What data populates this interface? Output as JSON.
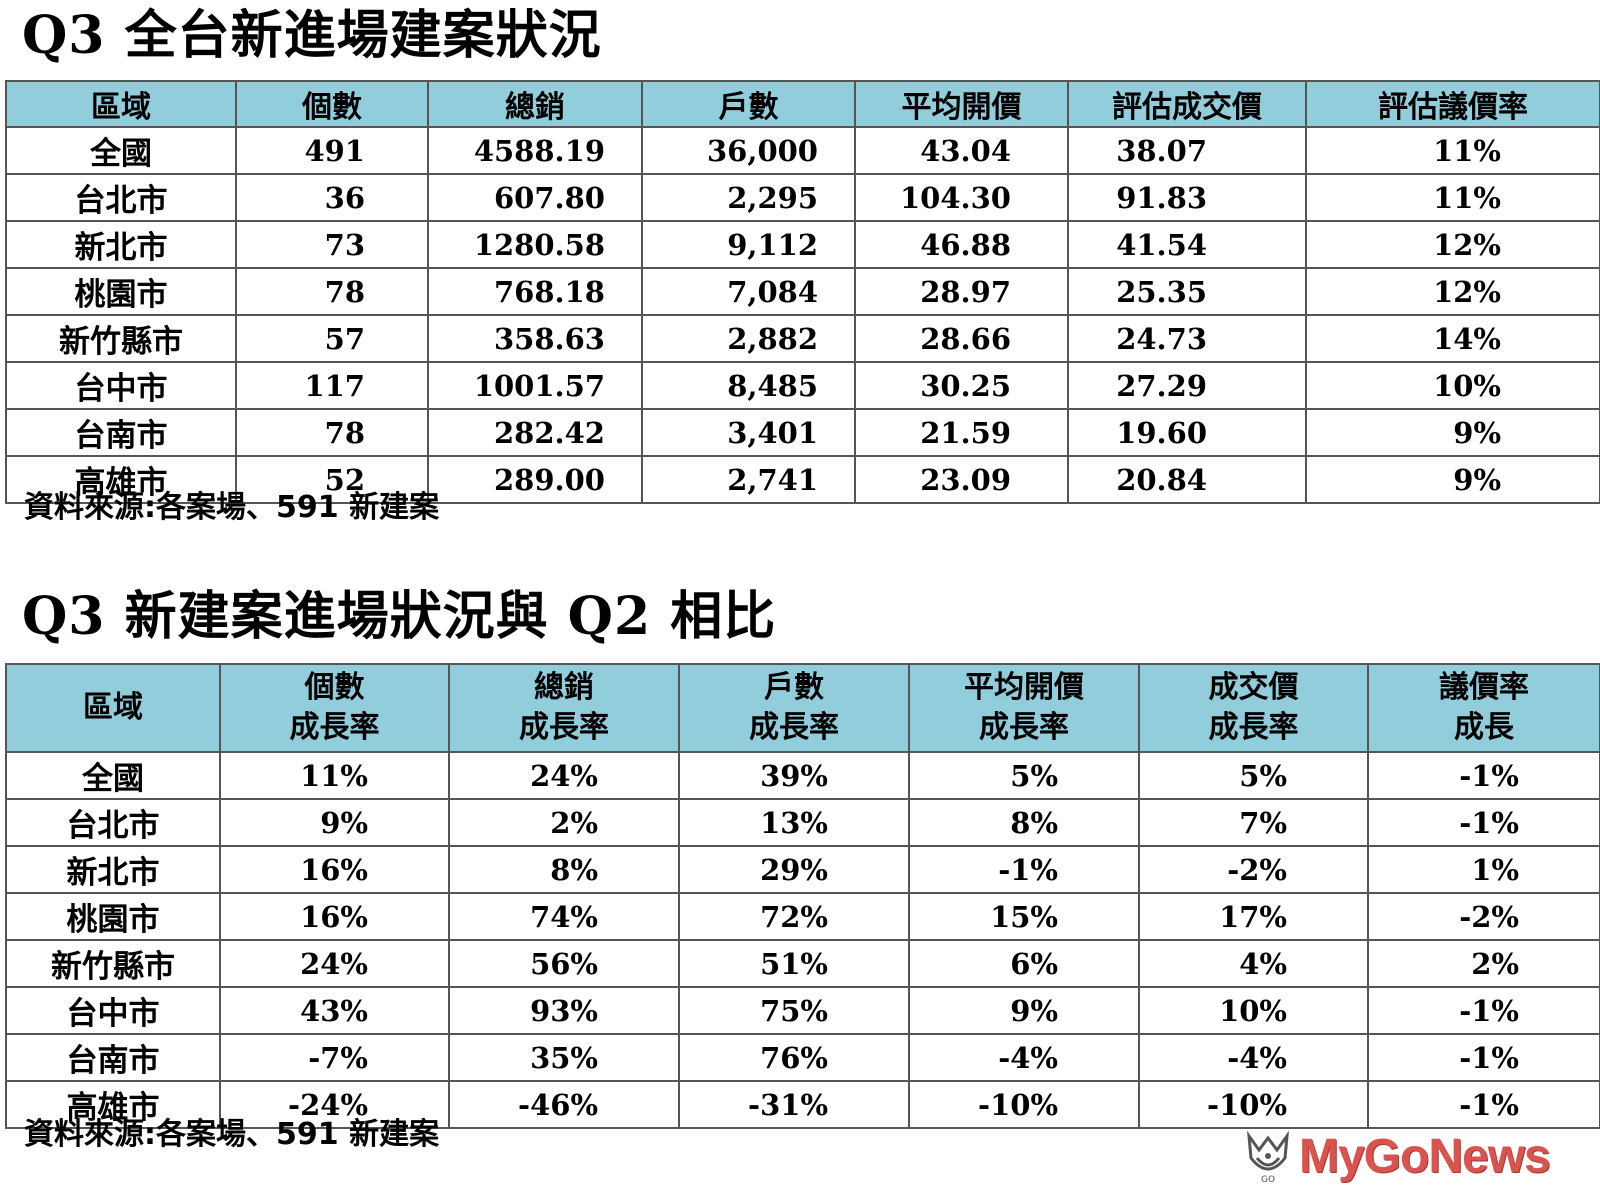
{
  "table1": {
    "title": "Q3 全台新進場建案狀況",
    "headers": [
      "區域",
      "個數",
      "總銷",
      "戶數",
      "平均開價",
      "評估成交價",
      "評估議價率"
    ],
    "rows": [
      [
        "全國",
        "491",
        "4588.19",
        "36,000",
        "43.04",
        "38.07",
        "11%"
      ],
      [
        "台北市",
        "36",
        "607.80",
        "2,295",
        "104.30",
        "91.83",
        "11%"
      ],
      [
        "新北市",
        "73",
        "1280.58",
        "9,112",
        "46.88",
        "41.54",
        "12%"
      ],
      [
        "桃園市",
        "78",
        "768.18",
        "7,084",
        "28.97",
        "25.35",
        "12%"
      ],
      [
        "新竹縣市",
        "57",
        "358.63",
        "2,882",
        "28.66",
        "24.73",
        "14%"
      ],
      [
        "台中市",
        "117",
        "1001.57",
        "8,485",
        "30.25",
        "27.29",
        "10%"
      ],
      [
        "台南市",
        "78",
        "282.42",
        "3,401",
        "21.59",
        "19.60",
        "9%"
      ],
      [
        "高雄市",
        "52",
        "289.00",
        "2,741",
        "23.09",
        "20.84",
        "9%"
      ]
    ],
    "source": "資料來源:各案場、591 新建案"
  },
  "table2": {
    "title": "Q3 新建案進場狀況與 Q2 相比",
    "headers": [
      [
        "區域"
      ],
      [
        "個數",
        "成長率"
      ],
      [
        "總銷",
        "成長率"
      ],
      [
        "戶數",
        "成長率"
      ],
      [
        "平均開價",
        "成長率"
      ],
      [
        "成交價",
        "成長率"
      ],
      [
        "議價率",
        "成長"
      ]
    ],
    "rows": [
      [
        "全國",
        "11%",
        "24%",
        "39%",
        "5%",
        "5%",
        "-1%"
      ],
      [
        "台北市",
        "9%",
        "2%",
        "13%",
        "8%",
        "7%",
        "-1%"
      ],
      [
        "新北市",
        "16%",
        "8%",
        "29%",
        "-1%",
        "-2%",
        "1%"
      ],
      [
        "桃園市",
        "16%",
        "74%",
        "72%",
        "15%",
        "17%",
        "-2%"
      ],
      [
        "新竹縣市",
        "24%",
        "56%",
        "51%",
        "6%",
        "4%",
        "2%"
      ],
      [
        "台中市",
        "43%",
        "93%",
        "75%",
        "9%",
        "10%",
        "-1%"
      ],
      [
        "台南市",
        "-7%",
        "35%",
        "76%",
        "-4%",
        "-4%",
        "-1%"
      ],
      [
        "高雄市",
        "-24%",
        "-46%",
        "-31%",
        "-10%",
        "-10%",
        "-1%"
      ]
    ],
    "source": "資料來源:各案場、591 新建案"
  },
  "logo": {
    "text": "MyGoNews",
    "icon": "mygonews-logo-icon",
    "color": "#d9534f"
  },
  "colors": {
    "header_background": "#92cddc",
    "border": "#555555"
  }
}
